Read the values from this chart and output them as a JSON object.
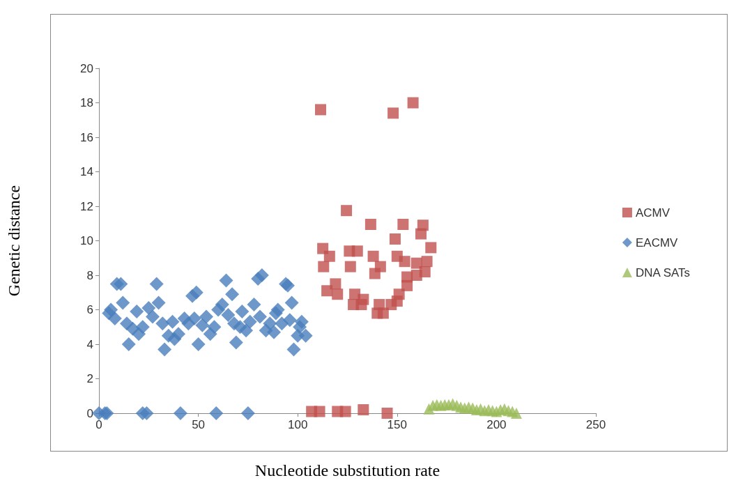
{
  "chart_data": {
    "type": "scatter",
    "xlabel": "Nucleotide substitution rate",
    "ylabel": "Genetic distance",
    "xlim": [
      0,
      250
    ],
    "xticks": [
      0,
      50,
      100,
      150,
      200,
      250
    ],
    "ylim": [
      0,
      20
    ],
    "yticks": [
      0,
      2,
      4,
      6,
      8,
      10,
      12,
      14,
      16,
      18,
      20
    ],
    "grid": false,
    "legend": "right",
    "series": [
      {
        "name": "ACMV",
        "color": "#c0504d",
        "marker": "square",
        "x": [
          107,
          111,
          120,
          124,
          133,
          145,
          111.5,
          148,
          158,
          124.5,
          136.7,
          153,
          163,
          149,
          162,
          167,
          112.6,
          116,
          126,
          130,
          138,
          150,
          113,
          126.5,
          138.8,
          141.6,
          153.8,
          159.8,
          165,
          164,
          159.8,
          155,
          155,
          119,
          114.7,
          120,
          128.7,
          133,
          151,
          150,
          128,
          141,
          147,
          143,
          140,
          132
        ],
        "values": [
          0.1,
          0.1,
          0.1,
          0.1,
          0.2,
          0,
          17.6,
          17.4,
          18,
          11.75,
          10.95,
          10.95,
          10.9,
          10.1,
          10.4,
          9.6,
          9.55,
          9.1,
          9.4,
          9.4,
          9.1,
          9.1,
          8.5,
          8.5,
          8.1,
          8.5,
          8.8,
          8.7,
          8.8,
          8.2,
          8,
          7.9,
          7.4,
          7.5,
          7.1,
          6.9,
          6.9,
          6.6,
          6.9,
          6.5,
          6.3,
          6.3,
          6.3,
          5.8,
          5.8,
          6.3
        ]
      },
      {
        "name": "EACMV",
        "color": "#4a7ebb",
        "marker": "diamond",
        "x": [
          0,
          3,
          4,
          22,
          24,
          41,
          59,
          75,
          9,
          11,
          6,
          5,
          8,
          12,
          14,
          15,
          17,
          19,
          20,
          22,
          25,
          27,
          29,
          30,
          32,
          33,
          35,
          37,
          38,
          40,
          43,
          45,
          47,
          49,
          48,
          50,
          52,
          54,
          56,
          58,
          60,
          62,
          64,
          65,
          67,
          68,
          69,
          71,
          72,
          74,
          76,
          78,
          80,
          82,
          81,
          84,
          86,
          88,
          89,
          90,
          92,
          94,
          95,
          96,
          97,
          98,
          100,
          101,
          102,
          104
        ],
        "values": [
          0,
          0,
          0,
          0,
          0,
          0,
          0,
          0,
          7.5,
          7.5,
          6,
          5.8,
          5.5,
          6.4,
          5.2,
          4,
          4.9,
          5.9,
          4.6,
          5,
          6.1,
          5.6,
          7.5,
          6.4,
          5.2,
          3.7,
          4.5,
          5.3,
          4.3,
          4.6,
          5.5,
          5.2,
          6.8,
          7,
          5.5,
          4,
          5.1,
          5.6,
          4.6,
          5,
          6,
          6.3,
          7.7,
          5.7,
          6.9,
          5.2,
          4.1,
          5,
          5.9,
          4.8,
          5.3,
          6.3,
          7.8,
          8,
          5.6,
          4.8,
          5.2,
          4.7,
          5.8,
          6,
          5.2,
          7.5,
          7.4,
          5.4,
          6.4,
          3.7,
          4.5,
          5,
          5.3,
          4.5
        ]
      },
      {
        "name": "DNA SATs",
        "color": "#9bbb59",
        "marker": "triangle",
        "x": [
          166,
          168,
          170,
          172,
          174,
          176,
          178,
          180,
          182,
          184,
          186,
          188,
          190,
          192,
          194,
          196,
          198,
          200,
          202,
          204,
          206,
          208,
          210
        ],
        "values": [
          0.25,
          0.45,
          0.5,
          0.45,
          0.5,
          0.5,
          0.55,
          0.45,
          0.35,
          0.3,
          0.35,
          0.3,
          0.2,
          0.25,
          0.15,
          0.2,
          0.15,
          0.1,
          0.2,
          0.25,
          0.15,
          0.1,
          0
        ]
      }
    ]
  }
}
